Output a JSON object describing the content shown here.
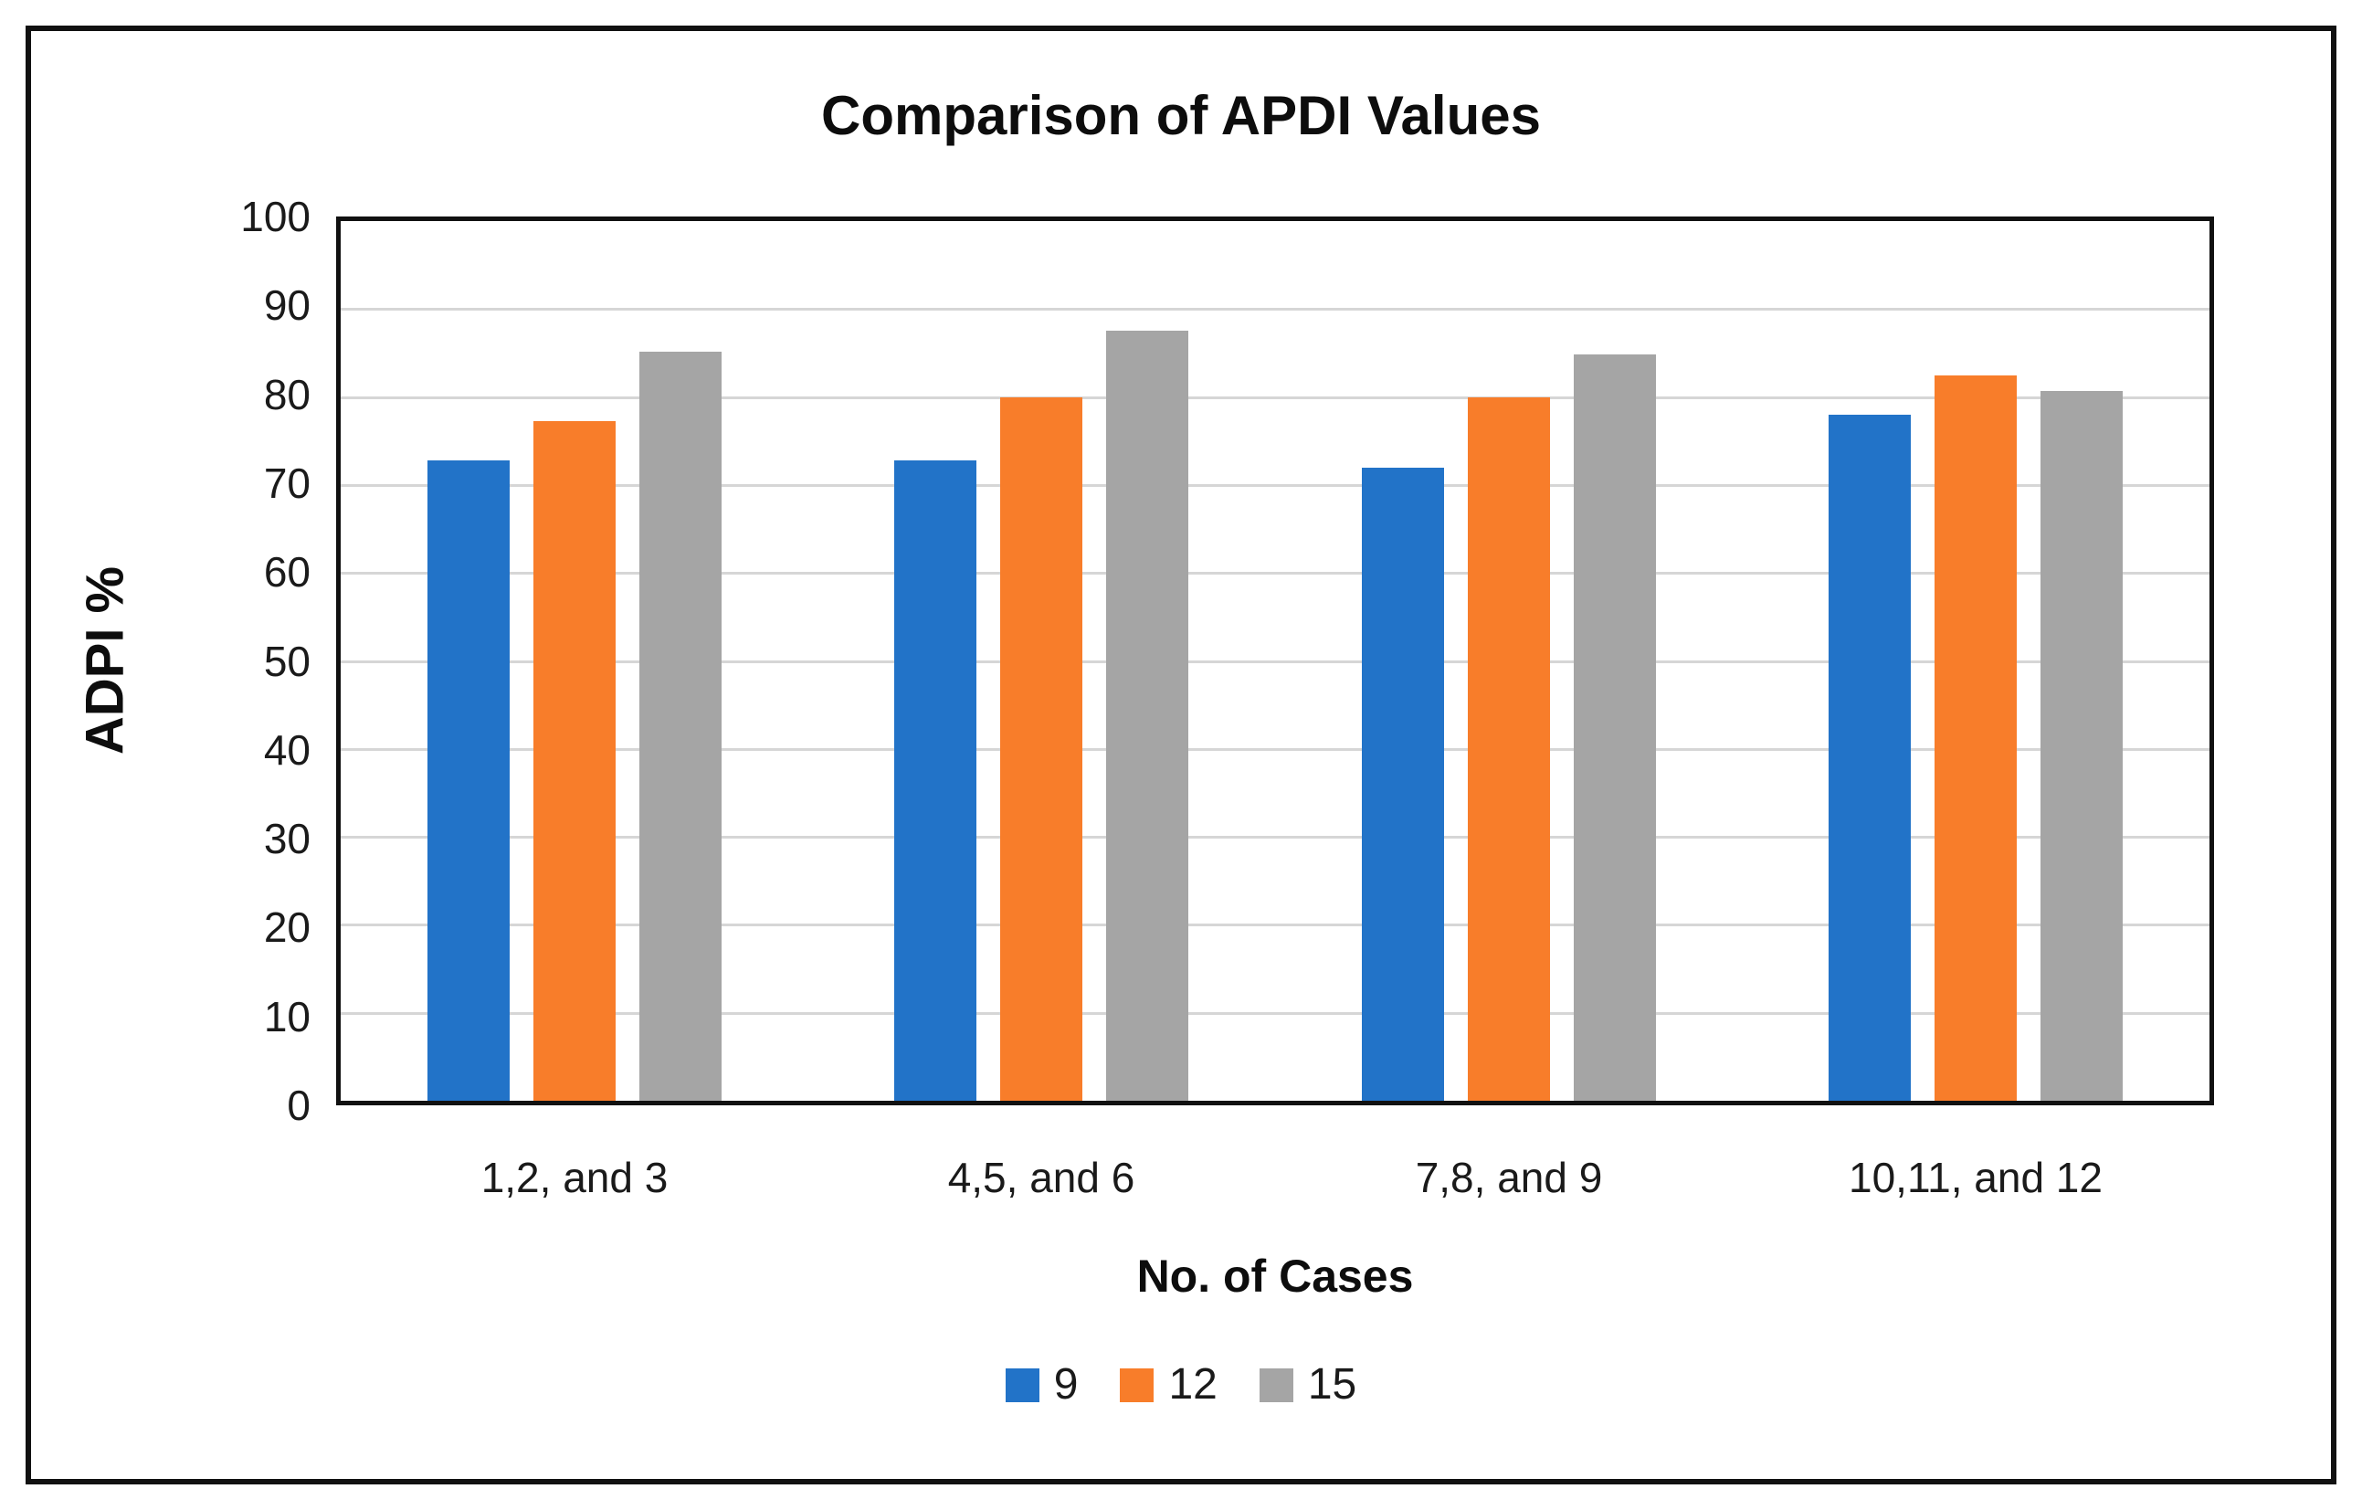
{
  "figure": {
    "background": "#ffffff",
    "border_color": "#111111"
  },
  "chart_data": {
    "type": "bar",
    "title": "Comparison of APDI Values",
    "xlabel": "No. of Cases",
    "ylabel": "ADPI %",
    "categories": [
      "1,2, and 3",
      "4,5, and 6",
      "7,8, and 9",
      "10,11, and 12"
    ],
    "series": [
      {
        "name": "9",
        "color": "#2273C8",
        "values": [
          72.8,
          72.8,
          72.0,
          78.0
        ]
      },
      {
        "name": "12",
        "color": "#F87D2A",
        "values": [
          77.3,
          80.0,
          80.0,
          82.4
        ]
      },
      {
        "name": "15",
        "color": "#A5A5A5",
        "values": [
          85.2,
          87.5,
          84.8,
          80.7
        ]
      }
    ],
    "ylim": [
      0,
      100
    ],
    "ytick_step": 10,
    "yticks": [
      "0",
      "10",
      "20",
      "30",
      "40",
      "50",
      "60",
      "70",
      "80",
      "90",
      "100"
    ],
    "grid": true,
    "gridline_color": "#d6d6d6",
    "legend_position": "bottom"
  }
}
